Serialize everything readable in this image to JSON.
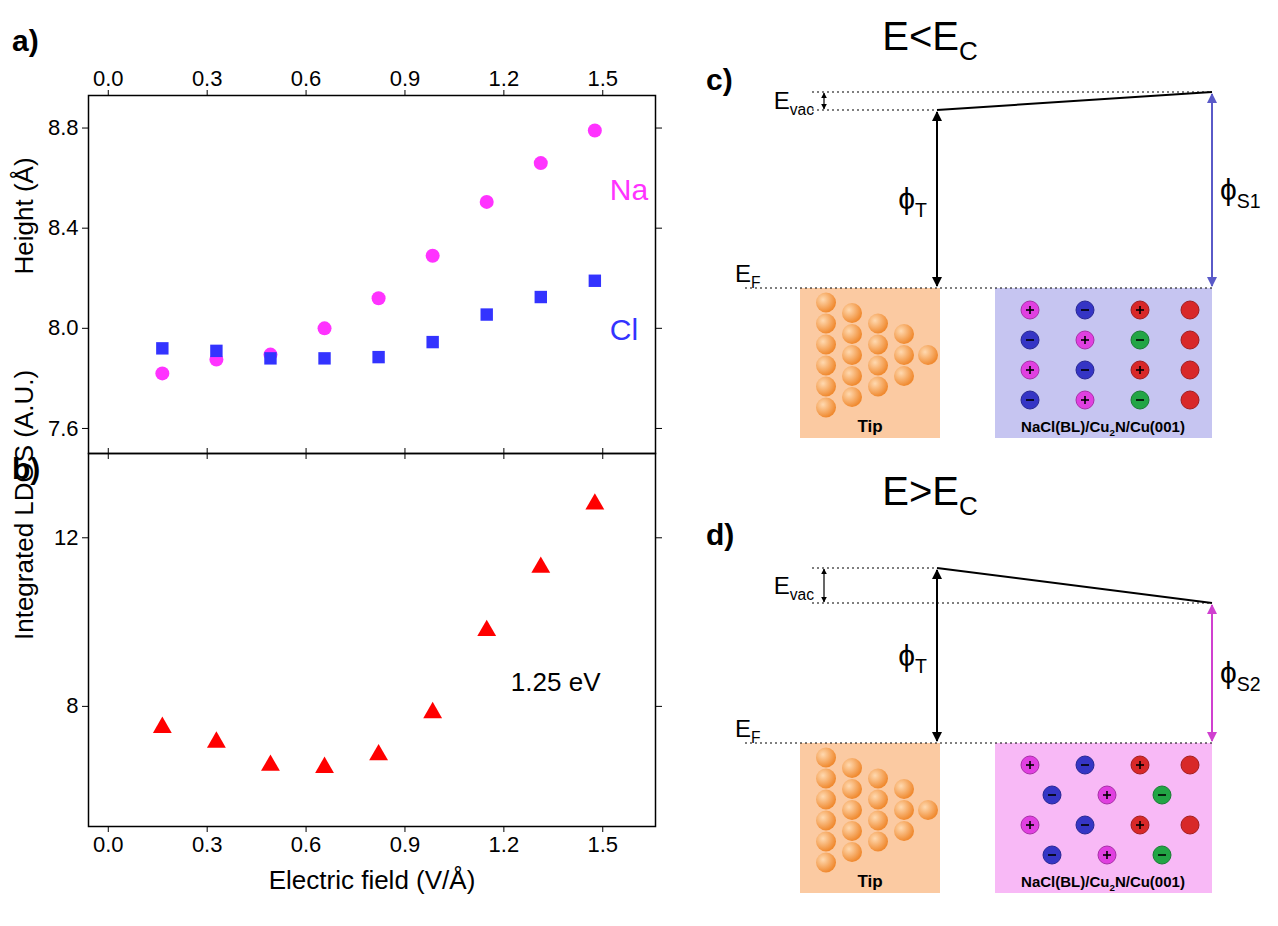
{
  "chart_data": [
    {
      "type": "scatter",
      "panel_label": "a)",
      "ylabel": "Height (Å)",
      "x": [
        0.164,
        0.328,
        0.492,
        0.656,
        0.82,
        0.984,
        1.148,
        1.312,
        1.476
      ],
      "xlim": [
        -0.06,
        1.66
      ],
      "xticks": [
        {
          "value": 0,
          "label": "0.0"
        },
        0.3,
        0.6,
        0.9,
        1.2,
        1.5
      ],
      "ylim": [
        7.5,
        8.93
      ],
      "yticks": [
        7.6,
        {
          "value": 8,
          "label": "8.0"
        },
        8.4,
        8.8
      ],
      "series": [
        {
          "name": "Na",
          "color": "#ff33ff",
          "marker": "circle",
          "values": [
            7.82,
            7.875,
            7.895,
            8.0,
            8.12,
            8.29,
            8.505,
            8.66,
            8.79
          ]
        },
        {
          "name": "Cl",
          "color": "#3333ff",
          "marker": "square",
          "values": [
            7.92,
            7.91,
            7.88,
            7.88,
            7.885,
            7.945,
            8.055,
            8.125,
            8.19
          ]
        }
      ]
    },
    {
      "type": "scatter",
      "panel_label": "b)",
      "xlabel": "Electric field (V/Å)",
      "ylabel": "Integrated LDOS (A.U.)",
      "annotation": "1.25 eV",
      "x": [
        0.164,
        0.328,
        0.492,
        0.656,
        0.82,
        0.984,
        1.148,
        1.312,
        1.476
      ],
      "xlim": [
        -0.06,
        1.66
      ],
      "xticks": [
        {
          "value": 0,
          "label": "0.0"
        },
        0.3,
        0.6,
        0.9,
        1.2,
        1.5
      ],
      "ylim": [
        5.15,
        14.0
      ],
      "yticks": [
        8,
        12
      ],
      "color": "#ff0000",
      "marker": "triangle",
      "values": [
        7.5,
        7.15,
        6.6,
        6.55,
        6.85,
        7.85,
        9.8,
        11.3,
        12.8
      ]
    }
  ],
  "diagrams": [
    {
      "panel_label": "c)",
      "title": [
        "E<E",
        "C"
      ],
      "vacuum_label": [
        "E",
        "vac"
      ],
      "fermi_label": [
        "E",
        "F"
      ],
      "tip_work_function": [
        "ϕ",
        "T"
      ],
      "sample_work_function": [
        "ϕ",
        "S1"
      ],
      "tip_label": "Tip",
      "sample_label": [
        "NaCl(BL)/Cu",
        "2",
        "N/Cu(001)"
      ]
    },
    {
      "panel_label": "d)",
      "title": [
        "E>E",
        "C"
      ],
      "vacuum_label": [
        "E",
        "vac"
      ],
      "fermi_label": [
        "E",
        "F"
      ],
      "tip_work_function": [
        "ϕ",
        "T"
      ],
      "sample_work_function": [
        "ϕ",
        "S2"
      ],
      "tip_label": "Tip",
      "sample_label": [
        "NaCl(BL)/Cu",
        "2",
        "N/Cu(001)"
      ]
    }
  ]
}
